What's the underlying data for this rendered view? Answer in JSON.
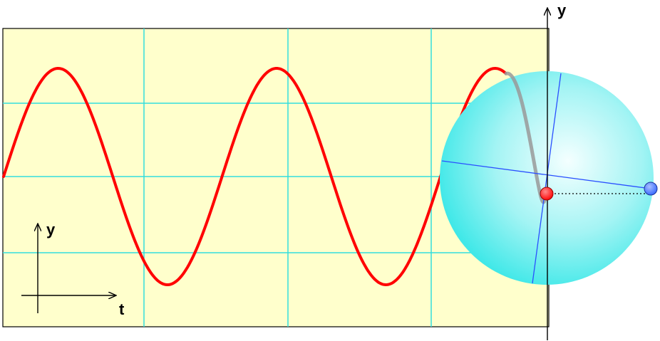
{
  "colors": {
    "plot_background": "#ffffcc",
    "grid": "#33dddd",
    "wave": "#ff0000",
    "wave_trail": "#999999",
    "sphere_light": "#f4ffff",
    "sphere_mid": "#a4f4f4",
    "sphere_edge": "#40e8e8",
    "rotation_lines": "#2a4fff",
    "red_point": "#ff0000",
    "blue_point": "#3366ff",
    "axes": "#000000"
  },
  "labels": {
    "main_axis_y": "y",
    "inset_axis_y": "y",
    "inset_axis_t": "t"
  },
  "wave": {
    "cycles_shown": 2,
    "phase_degrees": 0
  }
}
